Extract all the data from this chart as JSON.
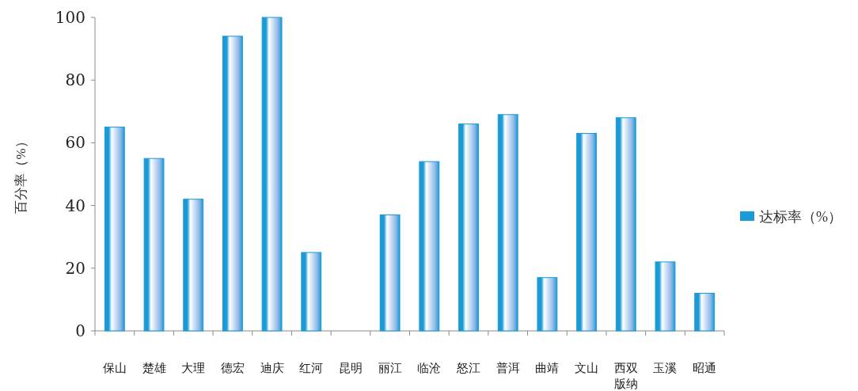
{
  "chart_data": {
    "type": "bar",
    "ylabel": "百分率（%）",
    "categories": [
      "保山",
      "楚雄",
      "大理",
      "德宏",
      "迪庆",
      "红河",
      "昆明",
      "丽江",
      "临沧",
      "怒江",
      "普洱",
      "曲靖",
      "文山",
      "西双版纳",
      "玉溪",
      "昭通"
    ],
    "series": [
      {
        "name": "达标率（%）",
        "color": "#1a9ad6",
        "values": [
          65,
          55,
          42,
          94,
          100,
          25,
          null,
          37,
          54,
          66,
          69,
          17,
          63,
          68,
          22,
          12
        ]
      }
    ],
    "ylim": [
      0,
      100
    ],
    "yticks": [
      0,
      20,
      40,
      60,
      80,
      100
    ],
    "grid": false,
    "legend": "right"
  }
}
